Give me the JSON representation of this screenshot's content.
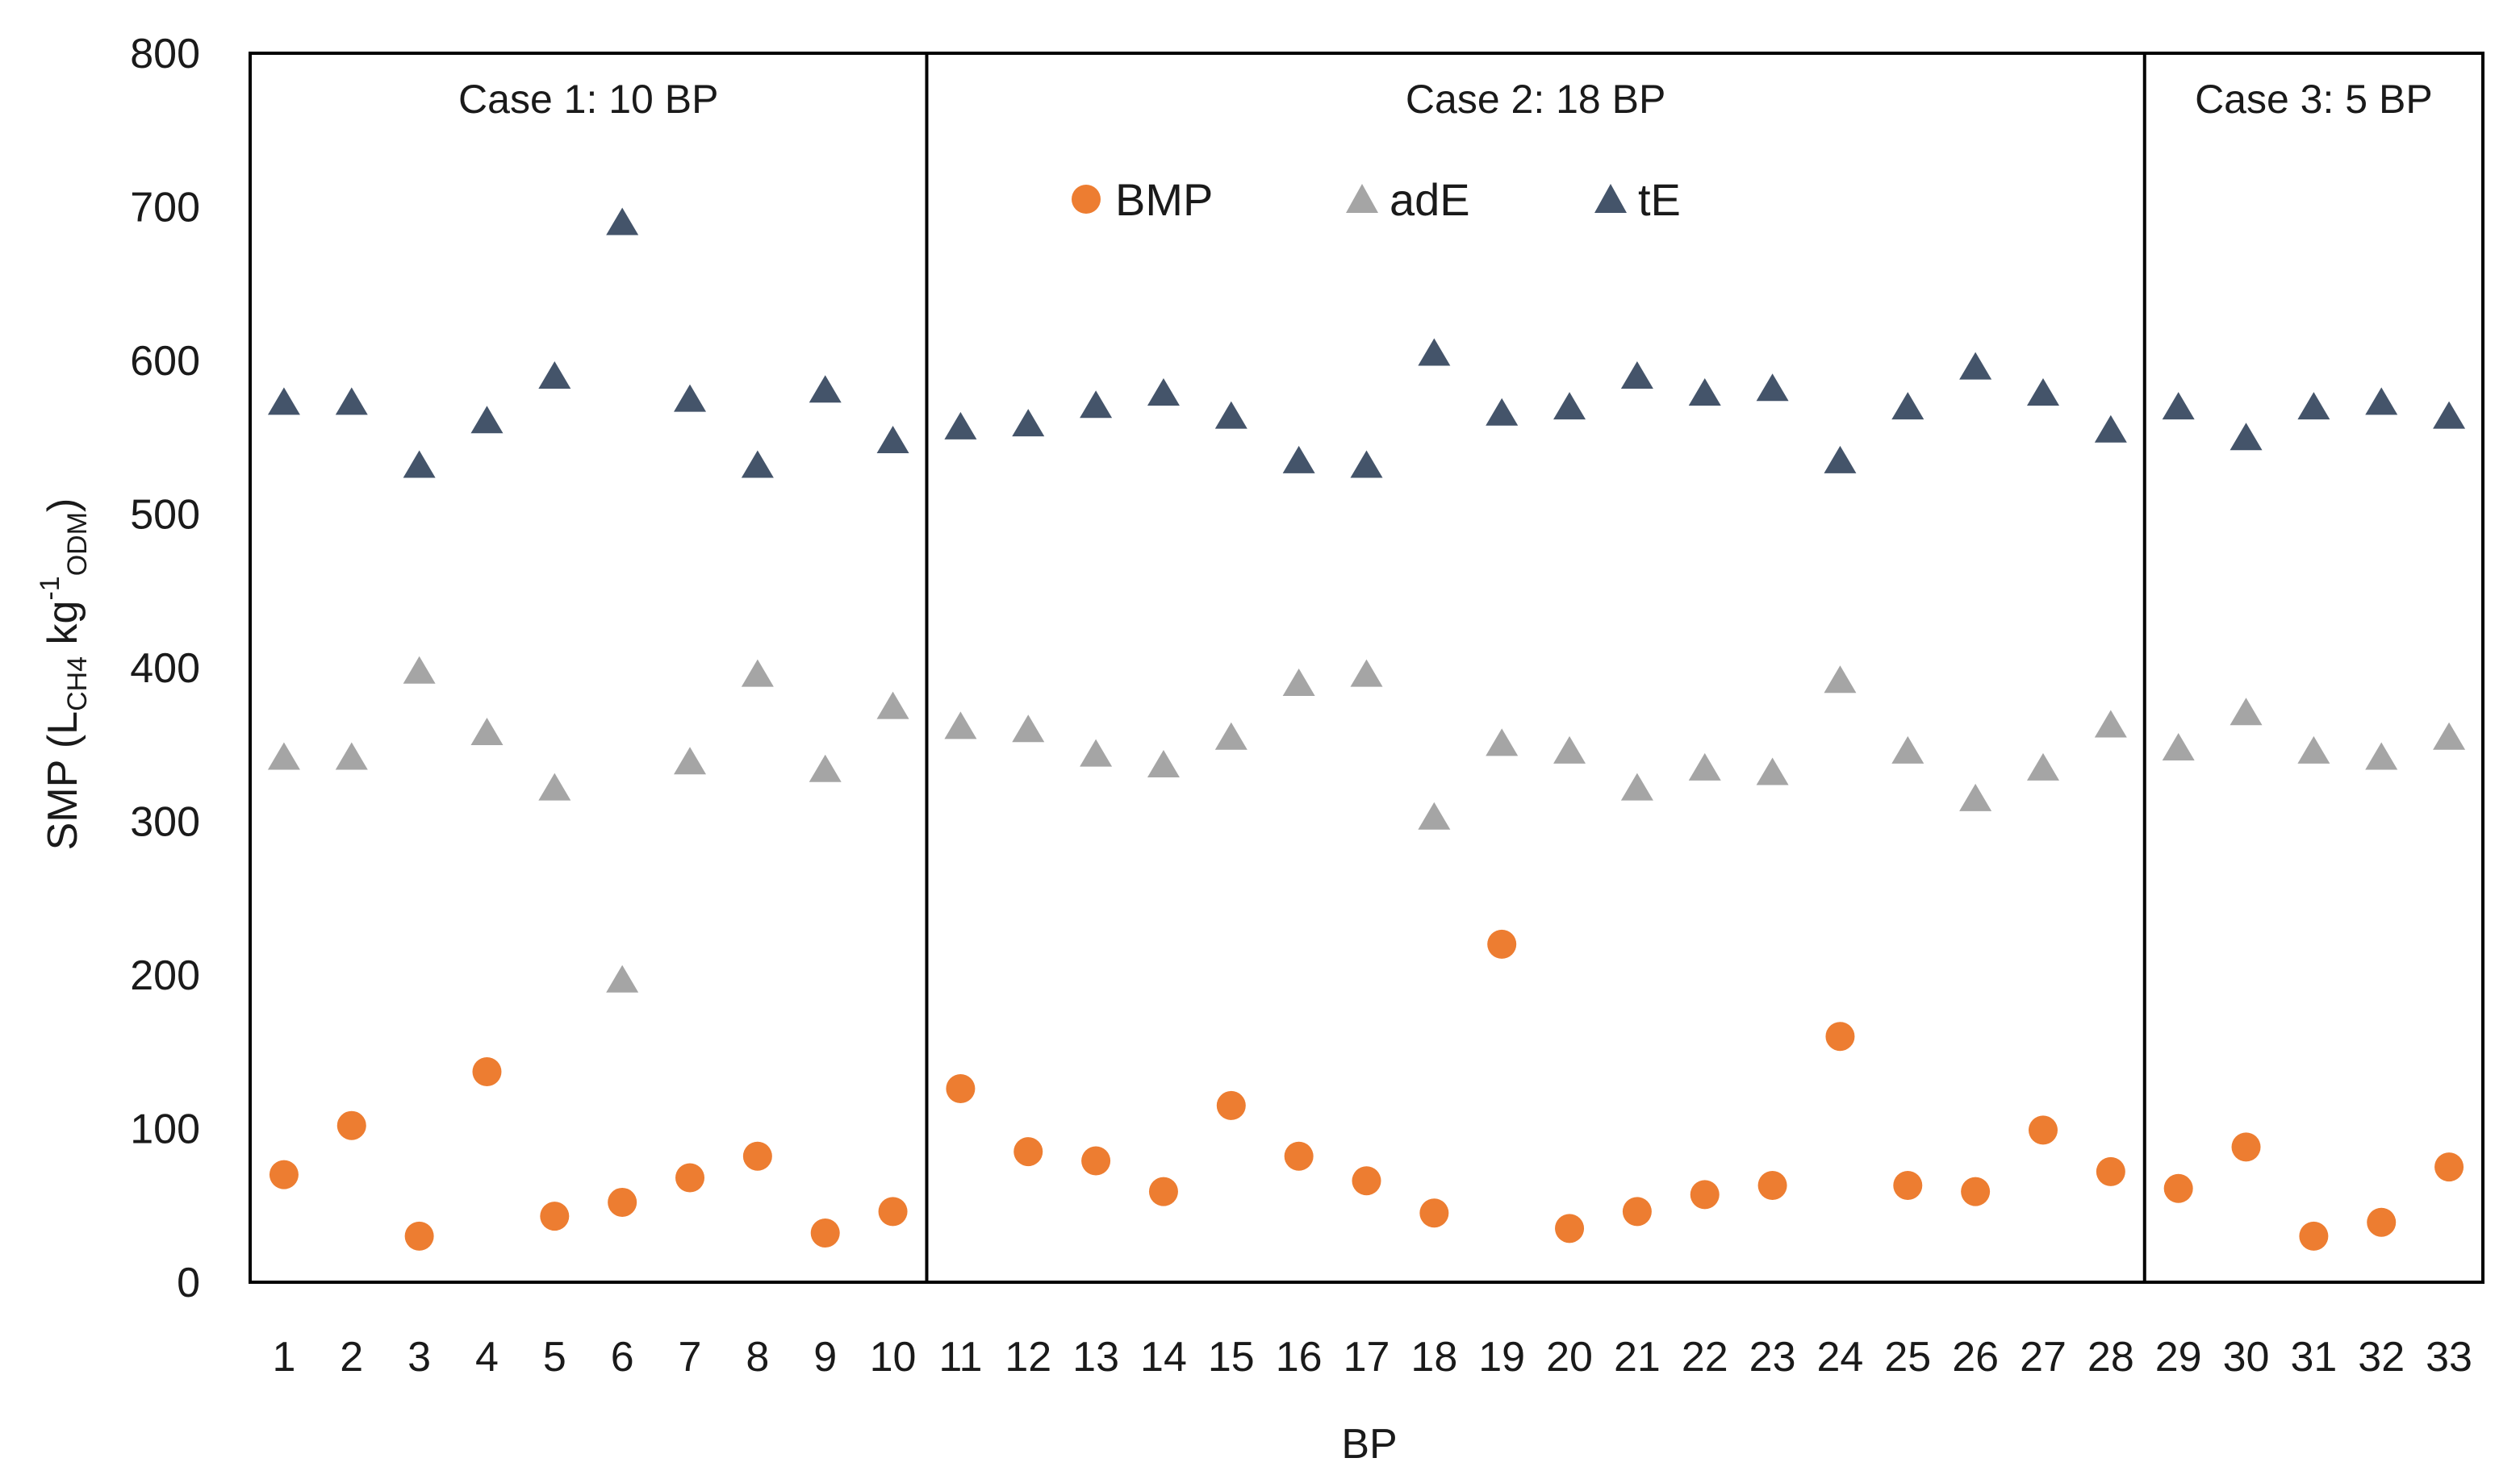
{
  "chart_data": {
    "type": "scatter",
    "title": "",
    "xlabel": "BP",
    "ylabel": {
      "main": "SMP (L",
      "sub1": "CH4",
      "mid": " kg",
      "sup": "-1",
      "sub2": "ODM",
      "end": ")"
    },
    "ylim": [
      0,
      800
    ],
    "yticks": [
      0,
      100,
      200,
      300,
      400,
      500,
      600,
      700,
      800
    ],
    "categories": [
      "1",
      "2",
      "3",
      "4",
      "5",
      "6",
      "7",
      "8",
      "9",
      "10",
      "11",
      "12",
      "13",
      "14",
      "15",
      "16",
      "17",
      "18",
      "19",
      "20",
      "21",
      "22",
      "23",
      "24",
      "25",
      "26",
      "27",
      "28",
      "29",
      "30",
      "31",
      "32",
      "33"
    ],
    "legend_position": "top-center",
    "series": [
      {
        "name": "BMP",
        "marker": "circle",
        "color": "#ED7D31",
        "values": [
          70,
          102,
          30,
          137,
          43,
          52,
          68,
          82,
          32,
          46,
          126,
          85,
          79,
          59,
          115,
          82,
          66,
          45,
          220,
          35,
          46,
          57,
          63,
          160,
          63,
          59,
          99,
          72,
          61,
          88,
          30,
          39,
          75
        ]
      },
      {
        "name": "adE",
        "marker": "triangle",
        "color": "#A5A5A5",
        "values": [
          342,
          342,
          398,
          358,
          322,
          197,
          339,
          396,
          334,
          375,
          362,
          360,
          344,
          337,
          355,
          390,
          396,
          303,
          351,
          346,
          322,
          335,
          332,
          392,
          346,
          315,
          335,
          363,
          348,
          371,
          346,
          342,
          355
        ]
      },
      {
        "name": "tE",
        "marker": "triangle",
        "color": "#44546A",
        "values": [
          573,
          573,
          532,
          561,
          590,
          690,
          575,
          532,
          581,
          548,
          557,
          559,
          571,
          579,
          564,
          535,
          532,
          605,
          566,
          570,
          590,
          579,
          582,
          535,
          570,
          596,
          579,
          555,
          570,
          550,
          570,
          573,
          564
        ]
      }
    ],
    "cases": [
      {
        "label": "Case 1: 10 BP",
        "start": 1,
        "end": 10
      },
      {
        "label": "Case 2: 18 BP",
        "start": 11,
        "end": 28
      },
      {
        "label": "Case 3: 5 BP",
        "start": 29,
        "end": 33
      }
    ]
  }
}
